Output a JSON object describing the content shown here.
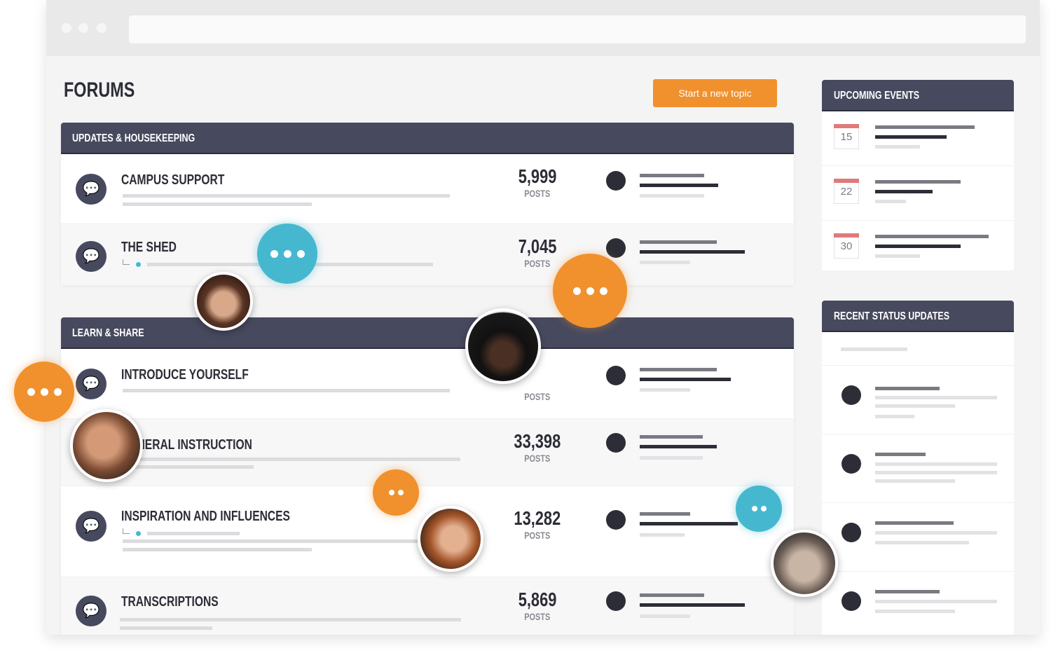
{
  "page": {
    "title": "FORUMS",
    "new_topic_label": "Start a new topic"
  },
  "sections": [
    {
      "title": "UPDATES & HOUSEKEEPING",
      "forums": [
        {
          "name": "CAMPUS SUPPORT",
          "posts": "5,999",
          "posts_label": "POSTS"
        },
        {
          "name": "THE SHED",
          "posts": "7,045",
          "posts_label": "POSTS"
        }
      ]
    },
    {
      "title": "LEARN & SHARE",
      "forums": [
        {
          "name": "INTRODUCE YOURSELF",
          "posts_label": "POSTS"
        },
        {
          "name": "GENERAL INSTRUCTION",
          "posts": "33,398",
          "posts_label": "POSTS"
        },
        {
          "name": "INSPIRATION AND INFLUENCES",
          "posts": "13,282",
          "posts_label": "POSTS"
        },
        {
          "name": "TRANSCRIPTIONS",
          "posts": "5,869",
          "posts_label": "POSTS"
        }
      ]
    }
  ],
  "sidebar": {
    "events_title": "UPCOMING EVENTS",
    "events": [
      {
        "day": "15"
      },
      {
        "day": "22"
      },
      {
        "day": "30"
      }
    ],
    "status_title": "RECENT STATUS UPDATES"
  },
  "colors": {
    "accent": "#f0912e",
    "header": "#474a5e",
    "bubble_blue": "#45b8d0",
    "event_red": "#e07a7a"
  }
}
